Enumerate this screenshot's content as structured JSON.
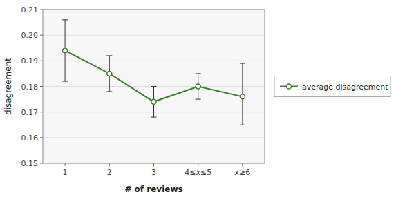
{
  "chart_data": {
    "type": "line",
    "xlabel": "# of reviews",
    "ylabel": "disagreement",
    "categories": [
      "1",
      "2",
      "3",
      "4≤x≤5",
      "x≥6"
    ],
    "series": [
      {
        "name": "average disagreement",
        "color": "#3a7d2c",
        "marker": "circle",
        "values": [
          0.194,
          0.185,
          0.174,
          0.18,
          0.176
        ],
        "error_upper": [
          0.012,
          0.007,
          0.006,
          0.005,
          0.013
        ],
        "error_lower": [
          0.012,
          0.007,
          0.006,
          0.005,
          0.011
        ]
      }
    ],
    "ylim": [
      0.15,
      0.21
    ],
    "yticks": [
      0.15,
      0.16,
      0.17,
      0.18,
      0.19,
      {
        "value": 0.2,
        "label": "0.20"
      },
      0.21
    ],
    "grid": true,
    "legend": "right"
  }
}
